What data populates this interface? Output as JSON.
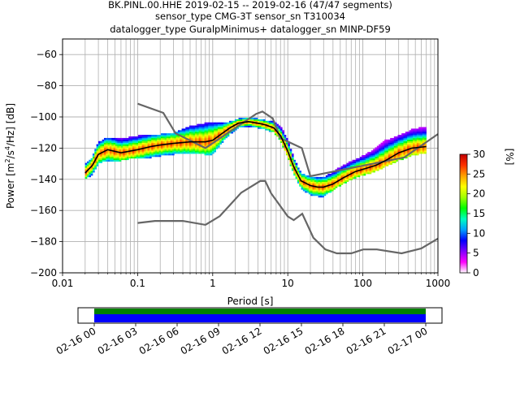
{
  "chart_data": {
    "type": "heatmap",
    "title_lines": [
      "BK.PINL.00.HHE   2019-02-15 -- 2019-02-16  (47/47 segments)",
      "sensor_type CMG-3T sensor_sn T310034",
      "datalogger_type GuralpMinimus+ datalogger_sn MINP-DF59"
    ],
    "xlabel": "Period [s]",
    "ylabel_prefix": "Power [m",
    "ylabel_sup1": "2",
    "ylabel_mid": "/s",
    "ylabel_sup2": "4",
    "ylabel_suffix": "/Hz] [dB]",
    "x_scale": "log",
    "xlim": [
      0.01,
      1000
    ],
    "ylim": [
      -200,
      -50
    ],
    "x_ticks": [
      0.01,
      0.1,
      1,
      10,
      100,
      1000
    ],
    "x_tick_labels": [
      "0.01",
      "0.1",
      "1",
      "10",
      "100",
      "1000"
    ],
    "y_ticks": [
      -200,
      -180,
      -160,
      -140,
      -120,
      -100,
      -80,
      -60
    ],
    "y_tick_labels": [
      "−200",
      "−180",
      "−160",
      "−140",
      "−120",
      "−100",
      "−80",
      "−60"
    ],
    "grid": true,
    "colorbar": {
      "label": "[%]",
      "range": [
        0,
        30
      ],
      "ticks": [
        0,
        5,
        10,
        15,
        20,
        25,
        30
      ],
      "tick_labels": [
        "0",
        "5",
        "10",
        "15",
        "20",
        "25",
        "30"
      ],
      "colors": [
        "#ffffff",
        "#ff00ff",
        "#8000ff",
        "#0000ff",
        "#00a0ff",
        "#00ffc0",
        "#00ff00",
        "#a0ff00",
        "#ffff00",
        "#ffa000",
        "#ff3000",
        "#c00000"
      ]
    },
    "psd_band": {
      "periods": [
        0.02,
        0.025,
        0.03,
        0.04,
        0.06,
        0.1,
        0.15,
        0.2,
        0.3,
        0.5,
        0.8,
        1.0,
        1.3,
        1.7,
        2.2,
        3.0,
        4.0,
        5.0,
        6.5,
        8.0,
        10.0,
        12.0,
        15.0,
        20.0,
        25.0,
        30.0,
        40.0,
        55.0,
        80.0,
        110.0,
        150.0,
        200.0,
        300.0,
        450.0,
        700.0
      ],
      "mode_db": [
        -136,
        -131,
        -124,
        -121,
        -123,
        -121,
        -119,
        -118,
        -117,
        -116,
        -116,
        -115,
        -111,
        -107,
        -104,
        -103,
        -104,
        -105,
        -107,
        -112,
        -122,
        -132,
        -141,
        -144,
        -145,
        -145,
        -143,
        -139,
        -135,
        -133,
        -131,
        -128,
        -123,
        -120,
        -119
      ],
      "upper_db": [
        -130,
        -126,
        -116,
        -113,
        -114,
        -112,
        -112,
        -111,
        -110,
        -106,
        -104,
        -104,
        -104,
        -103,
        -101,
        -101,
        -101,
        -102,
        -103,
        -106,
        -114,
        -126,
        -136,
        -138,
        -139,
        -139,
        -135,
        -131,
        -127,
        -124,
        -120,
        -115,
        -112,
        -108,
        -106
      ],
      "lower_db": [
        -140,
        -137,
        -130,
        -128,
        -128,
        -126,
        -126,
        -125,
        -124,
        -123,
        -124,
        -124,
        -117,
        -111,
        -107,
        -106,
        -107,
        -108,
        -110,
        -115,
        -126,
        -136,
        -146,
        -150,
        -151,
        -151,
        -147,
        -143,
        -139,
        -137,
        -135,
        -132,
        -128,
        -125,
        -123
      ]
    },
    "nhnm": {
      "periods": [
        0.1,
        0.22,
        0.32,
        0.8,
        3.8,
        4.6,
        6.3,
        7.9,
        15.4,
        20,
        354.8,
        1000
      ],
      "db": [
        -91.5,
        -97.4,
        -110.5,
        -120.0,
        -98.0,
        -96.5,
        -101.0,
        -113.5,
        -120.0,
        -138.0,
        -126.0,
        -111.0
      ]
    },
    "nlnm": {
      "periods": [
        0.1,
        0.17,
        0.4,
        0.8,
        1.24,
        2.4,
        4.3,
        5.0,
        6.0,
        10.0,
        12.0,
        15.6,
        21.9,
        31.6,
        45.0,
        70.0,
        101.0,
        154.0,
        328.0,
        600.0,
        1000.0
      ],
      "db": [
        -168.0,
        -166.7,
        -166.7,
        -169.2,
        -163.7,
        -148.6,
        -141.1,
        -141.1,
        -149.0,
        -163.8,
        -166.2,
        -162.1,
        -177.5,
        -185.0,
        -187.5,
        -187.5,
        -185.0,
        -185.0,
        -187.5,
        -184.4,
        -178.0
      ]
    },
    "timeline": {
      "tick_labels": [
        "02-16 00",
        "02-16 03",
        "02-16 06",
        "02-16 09",
        "02-16 12",
        "02-16 15",
        "02-16 18",
        "02-16 21",
        "02-17 00"
      ],
      "coverage_color_top": "#008000",
      "coverage_color_bottom": "#0000ff"
    }
  }
}
